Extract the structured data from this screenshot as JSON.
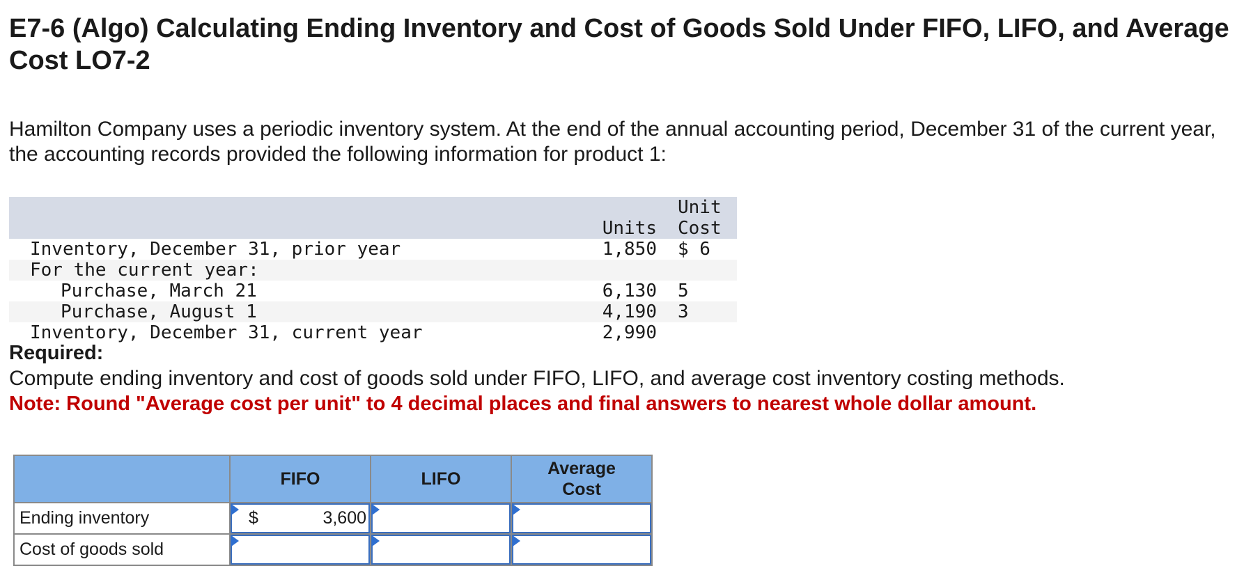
{
  "title": "E7-6 (Algo) Calculating Ending Inventory and Cost of Goods Sold Under FIFO, LIFO, and Average Cost LO7-2",
  "intro": "Hamilton Company uses a periodic inventory system. At the end of the annual accounting period, December 31 of the current year, the accounting records provided the following information for product 1:",
  "data_table": {
    "headers": {
      "units": "Units",
      "unit_cost_line1": "Unit",
      "unit_cost_line2": "Cost"
    },
    "rows": [
      {
        "label": "Inventory, December 31, prior year",
        "units": "1,850",
        "cost": "$ 6"
      },
      {
        "label": "For the current year:",
        "units": "",
        "cost": ""
      },
      {
        "label": "Purchase, March 21",
        "units": "6,130",
        "cost": "5"
      },
      {
        "label": "Purchase, August 1",
        "units": "4,190",
        "cost": "3"
      },
      {
        "label": "Inventory, December 31, current year",
        "units": "2,990",
        "cost": ""
      }
    ]
  },
  "required_label": "Required:",
  "compute_text": "Compute ending inventory and cost of goods sold under FIFO, LIFO, and average cost inventory costing methods.",
  "note_text": "Note: Round \"Average cost per unit\" to 4 decimal places and final answers to nearest whole dollar amount.",
  "answer_table": {
    "headers": {
      "fifo": "FIFO",
      "lifo": "LIFO",
      "avg_line1": "Average",
      "avg_line2": "Cost"
    },
    "rows": [
      {
        "label": "Ending inventory",
        "fifo_prefix": "$",
        "fifo": "3,600",
        "lifo": "",
        "avg": ""
      },
      {
        "label": "Cost of goods sold",
        "fifo_prefix": "",
        "fifo": "",
        "lifo": "",
        "avg": ""
      }
    ]
  },
  "colors": {
    "header_blue": "#7fb0e6",
    "table_header_gray": "#d6dbe6",
    "note_red": "#c00000",
    "input_border": "#3a6fbf"
  }
}
